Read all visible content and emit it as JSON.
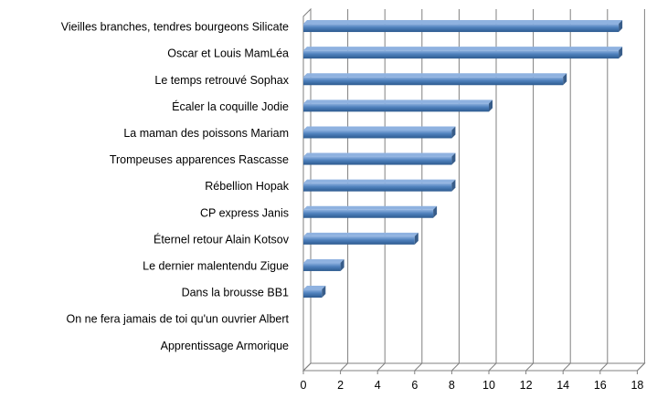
{
  "chart_data": {
    "type": "bar",
    "orientation": "horizontal",
    "categories": [
      "Vieilles branches, tendres bourgeons Silicate",
      "Oscar et Louis MamLéa",
      "Le temps retrouvé Sophax",
      "Écaler la coquille Jodie",
      "La maman des poissons  Mariam",
      "Trompeuses apparences Rascasse",
      "Rébellion Hopak",
      "CP express Janis",
      "Éternel retour Alain Kotsov",
      "Le dernier malentendu Zigue",
      "Dans la brousse BB1",
      "On ne fera jamais de toi qu'un ouvrier Albert",
      "Apprentissage Armorique"
    ],
    "values": [
      17,
      17,
      14,
      10,
      8,
      8,
      8,
      7,
      6,
      2,
      1,
      0,
      0
    ],
    "title": "",
    "xlabel": "",
    "ylabel": "",
    "xlim": [
      0,
      18
    ],
    "xticks": [
      0,
      2,
      4,
      6,
      8,
      10,
      12,
      14,
      16,
      18
    ],
    "grid": "vertical",
    "legend": "none",
    "colors": {
      "bar_light": "#8fb2e0",
      "bar_mid": "#4f81bd",
      "bar_dark": "#2c5a8f",
      "bar_end": "#385d8a",
      "grid": "#808080",
      "wall": "#ffffff"
    }
  }
}
